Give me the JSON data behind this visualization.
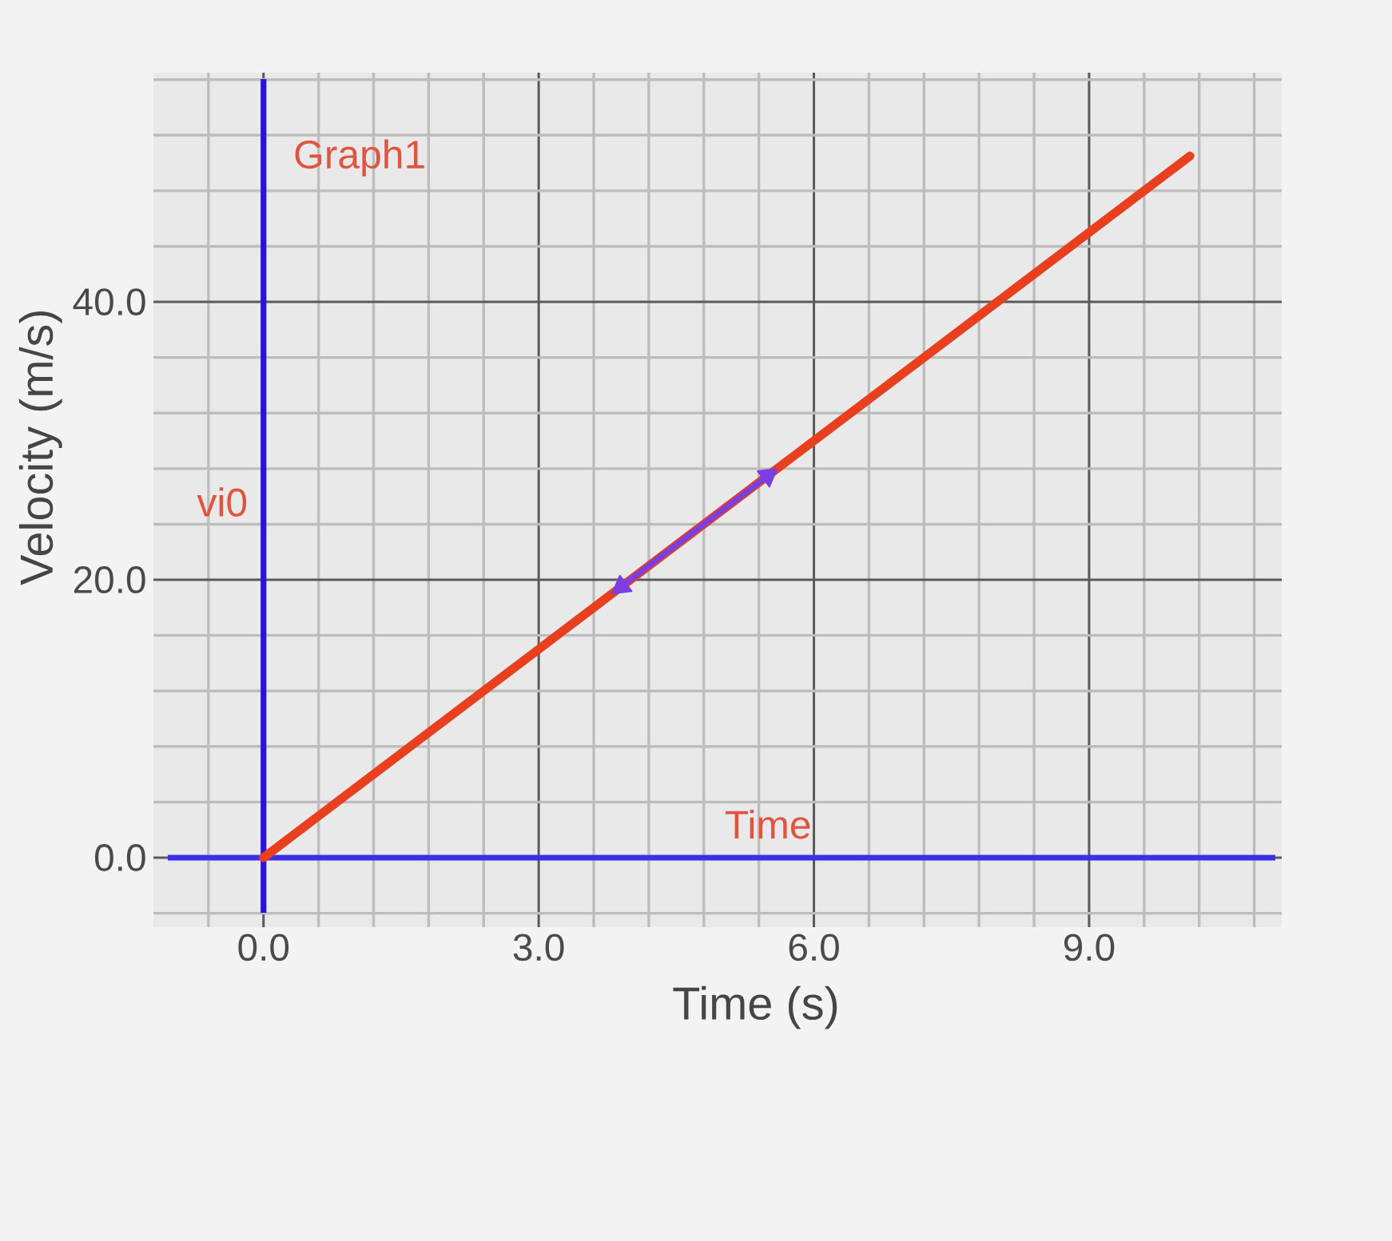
{
  "chart_data": {
    "type": "line",
    "title": "Graph1",
    "xlabel": "Time (s)",
    "ylabel": "Velocity (m/s)",
    "annotations": [
      "vi0",
      "Time"
    ],
    "series": [
      {
        "color": "#e8401f",
        "x": [
          0,
          10.1
        ],
        "values": [
          0,
          50.5
        ]
      },
      {
        "color": "#7b3fe0",
        "x": [
          3.9,
          5.5
        ],
        "values": [
          19.5,
          27.5
        ],
        "marker": "triangle"
      }
    ],
    "ref_lines": [
      {
        "axis": "x",
        "value": 0,
        "color": "#2a14d2"
      },
      {
        "axis": "y",
        "value": 0,
        "color": "#3a30e4"
      }
    ],
    "marker": "none",
    "grid": true,
    "xlim": [
      -1.2,
      11.1
    ],
    "ylim": [
      -5,
      56.5
    ],
    "xticks": [
      {
        "value": -0.6,
        "label": null
      },
      {
        "value": 0,
        "label": "0.0"
      },
      {
        "value": 0.6,
        "label": null
      },
      {
        "value": 1.2,
        "label": null
      },
      {
        "value": 1.8,
        "label": null
      },
      {
        "value": 2.4,
        "label": null
      },
      {
        "value": 3,
        "label": "3.0"
      },
      {
        "value": 3.6,
        "label": null
      },
      {
        "value": 4.2,
        "label": null
      },
      {
        "value": 4.8,
        "label": null
      },
      {
        "value": 5.4,
        "label": null
      },
      {
        "value": 6,
        "label": "6.0"
      },
      {
        "value": 6.6,
        "label": null
      },
      {
        "value": 7.2,
        "label": null
      },
      {
        "value": 7.8,
        "label": null
      },
      {
        "value": 8.4,
        "label": null
      },
      {
        "value": 9,
        "label": "9.0"
      },
      {
        "value": 9.6,
        "label": null
      },
      {
        "value": 10.2,
        "label": null
      },
      {
        "value": 10.8,
        "label": null
      }
    ],
    "yticks": [
      {
        "value": -4,
        "label": null
      },
      {
        "value": 0,
        "label": "0.0"
      },
      {
        "value": 4,
        "label": null
      },
      {
        "value": 8,
        "label": null
      },
      {
        "value": 12,
        "label": null
      },
      {
        "value": 16,
        "label": null
      },
      {
        "value": 20,
        "label": "20.0"
      },
      {
        "value": 24,
        "label": null
      },
      {
        "value": 28,
        "label": null
      },
      {
        "value": 32,
        "label": null
      },
      {
        "value": 36,
        "label": null
      },
      {
        "value": 40,
        "label": "40.0"
      },
      {
        "value": 44,
        "label": null
      },
      {
        "value": 48,
        "label": null
      },
      {
        "value": 52,
        "label": null
      },
      {
        "value": 56,
        "label": null
      }
    ]
  }
}
